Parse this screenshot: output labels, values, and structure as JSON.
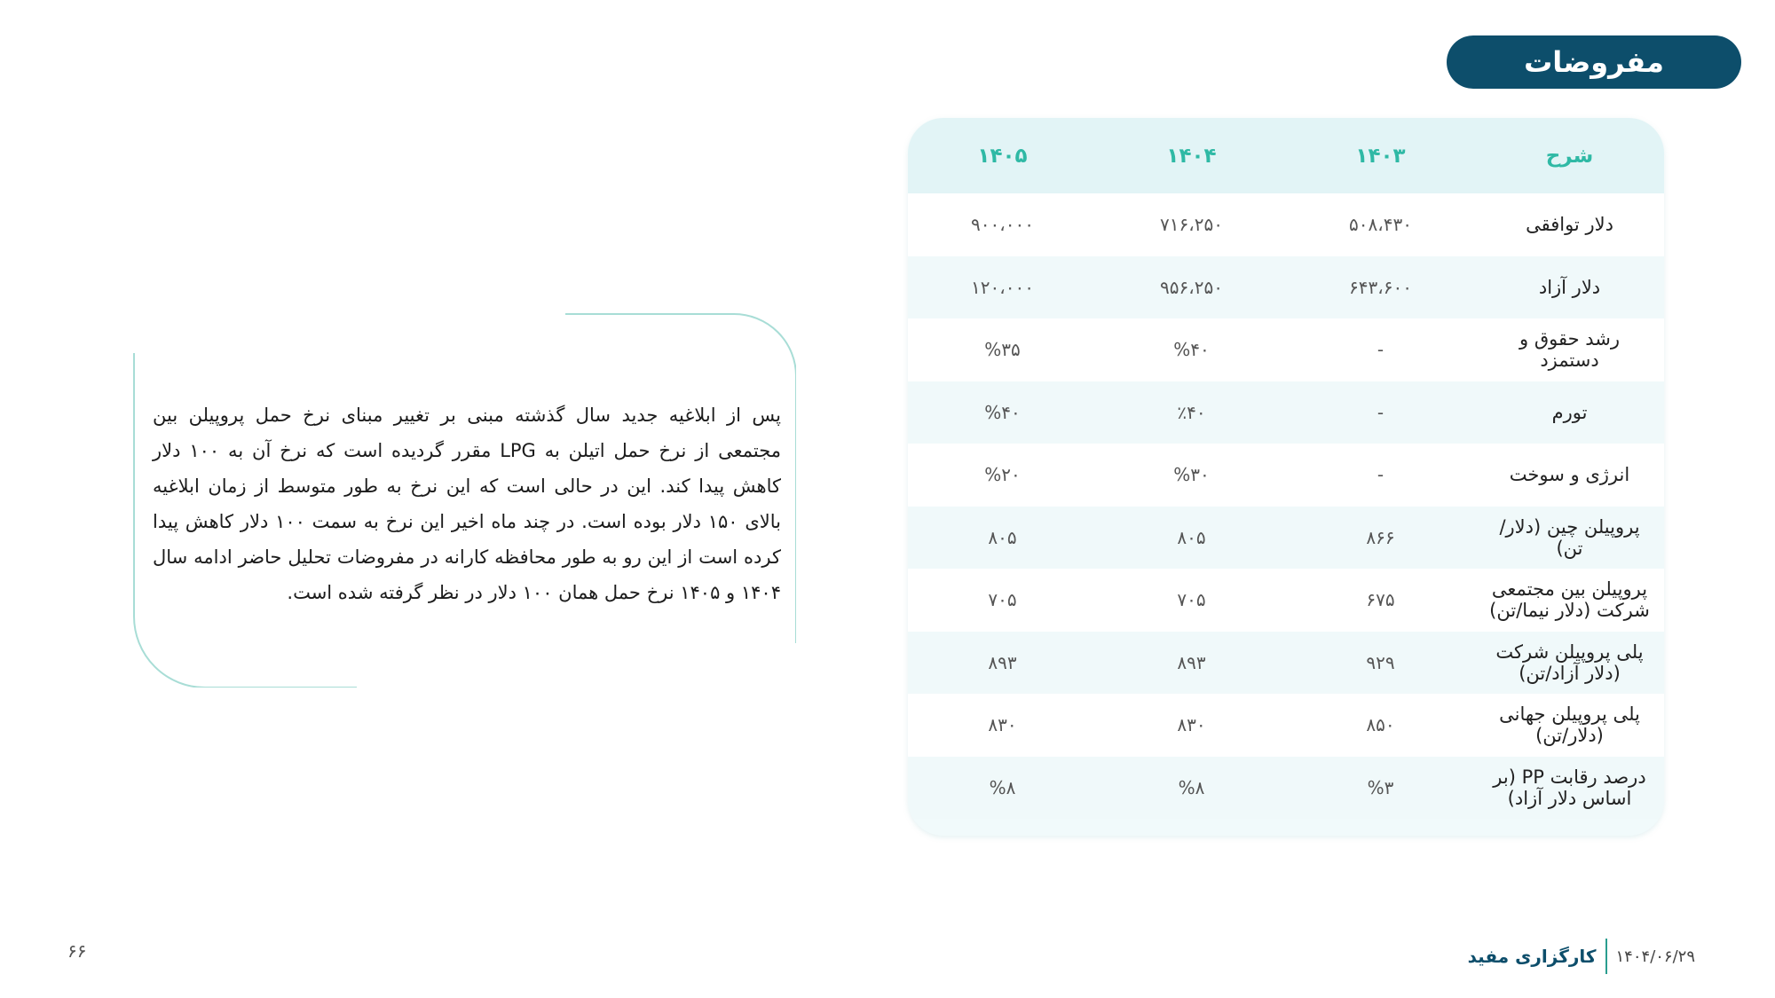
{
  "header": {
    "title": "مفروضات"
  },
  "table": {
    "columns": [
      "شرح",
      "۱۴۰۳",
      "۱۴۰۴",
      "۱۴۰۵"
    ],
    "rows": [
      [
        "دلار توافقی",
        "۵۰۸،۴۳۰",
        "۷۱۶،۲۵۰",
        "۹۰۰،۰۰۰"
      ],
      [
        "دلار آزاد",
        "۶۴۳،۶۰۰",
        "۹۵۶،۲۵۰",
        "۱۲۰،۰۰۰"
      ],
      [
        "رشد حقوق و دستمزد",
        "-",
        "%۴۰",
        "%۳۵"
      ],
      [
        "تورم",
        "-",
        "٪۴۰",
        "%۴۰"
      ],
      [
        "انرژی و سوخت",
        "-",
        "%۳۰",
        "%۲۰"
      ],
      [
        "پروپیلن چین (دلار/تن)",
        "۸۶۶",
        "۸۰۵",
        "۸۰۵"
      ],
      [
        "پروپیلن بین مجتمعی شرکت (دلار نیما/تن)",
        "۶۷۵",
        "۷۰۵",
        "۷۰۵"
      ],
      [
        "پلی پروپیلن شرکت (دلار آزاد/تن)",
        "۹۲۹",
        "۸۹۳",
        "۸۹۳"
      ],
      [
        "پلی پروپیلن جهانی (دلار/تن)",
        "۸۵۰",
        "۸۳۰",
        "۸۳۰"
      ],
      [
        "درصد رقابت PP (بر اساس دلار آزاد)",
        "%۳",
        "%۸",
        "%۸"
      ]
    ]
  },
  "note": {
    "text": "پس از ابلاغیه جدید سال گذشته مبنی بر تغییر مبنای نرخ حمل پروپیلن بین مجتمعی از نرخ حمل اتیلن به LPG مقرر گردیده است که نرخ آن به ۱۰۰ دلار کاهش پیدا کند. این در حالی است که این نرخ به طور متوسط از زمان ابلاغیه بالای ۱۵۰ دلار بوده است. در چند ماه اخیر این نرخ به سمت ۱۰۰ دلار کاهش پیدا کرده است از این رو به طور محافظه کارانه در مفروضات تحلیل حاضر ادامه سال ۱۴۰۴ و ۱۴۰۵ نرخ حمل همان ۱۰۰ دلار در نظر گرفته شده است."
  },
  "footer": {
    "page_number": "۶۶",
    "brand": "کارگزاری مفید",
    "date": "۱۴۰۴/۰۶/۲۹"
  },
  "colors": {
    "title_bg": "#0d4e6b",
    "header_text": "#2fb9a5",
    "header_bg": "#e2f4f6",
    "border": "#a8ddd6"
  }
}
